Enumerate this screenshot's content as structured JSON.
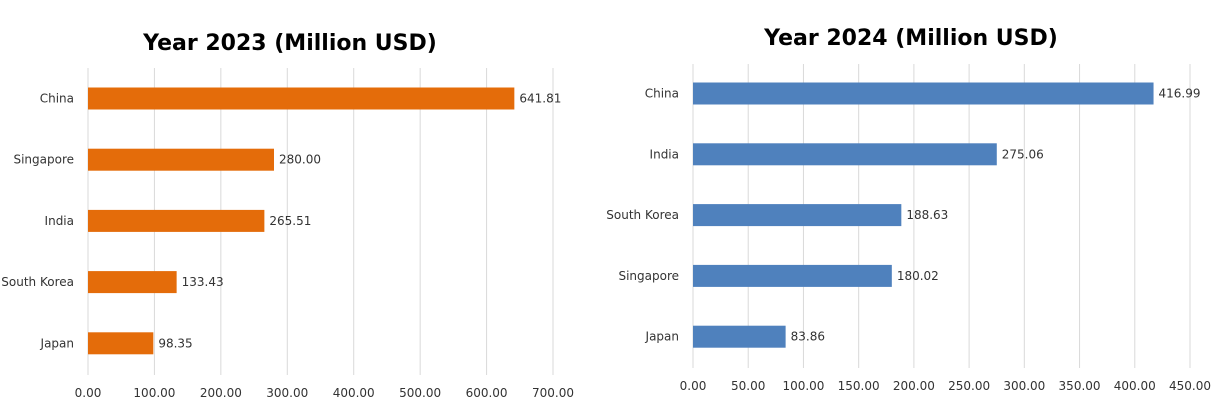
{
  "chart_data": [
    {
      "type": "bar",
      "orientation": "horizontal",
      "title": "Year 2023 (Million USD)",
      "categories": [
        "China",
        "Singapore",
        "India",
        "South Korea",
        "Japan"
      ],
      "values": [
        641.81,
        280.0,
        265.51,
        133.43,
        98.35
      ],
      "value_labels": [
        "641.81",
        "280.00",
        "265.51",
        "133.43",
        "98.35"
      ],
      "xlim": [
        0,
        700
      ],
      "xticks": [
        "0.00",
        "100.00",
        "200.00",
        "300.00",
        "400.00",
        "500.00",
        "600.00",
        "700.00"
      ],
      "xtick_values": [
        0,
        100,
        200,
        300,
        400,
        500,
        600,
        700
      ],
      "color": "#E46C0A",
      "grid": "vertical",
      "legend": "none"
    },
    {
      "type": "bar",
      "orientation": "horizontal",
      "title": "Year 2024 (Million USD)",
      "categories": [
        "China",
        "India",
        "South Korea",
        "Singapore",
        "Japan"
      ],
      "values": [
        416.99,
        275.06,
        188.63,
        180.02,
        83.86
      ],
      "value_labels": [
        "416.99",
        "275.06",
        "188.63",
        "180.02",
        "83.86"
      ],
      "xlim": [
        0,
        450
      ],
      "xticks": [
        "0.00",
        "50.00",
        "100.00",
        "150.00",
        "200.00",
        "250.00",
        "300.00",
        "350.00",
        "400.00",
        "450.00"
      ],
      "xtick_values": [
        0,
        50,
        100,
        150,
        200,
        250,
        300,
        350,
        400,
        450
      ],
      "color": "#4F81BD",
      "grid": "vertical",
      "legend": "none"
    }
  ]
}
